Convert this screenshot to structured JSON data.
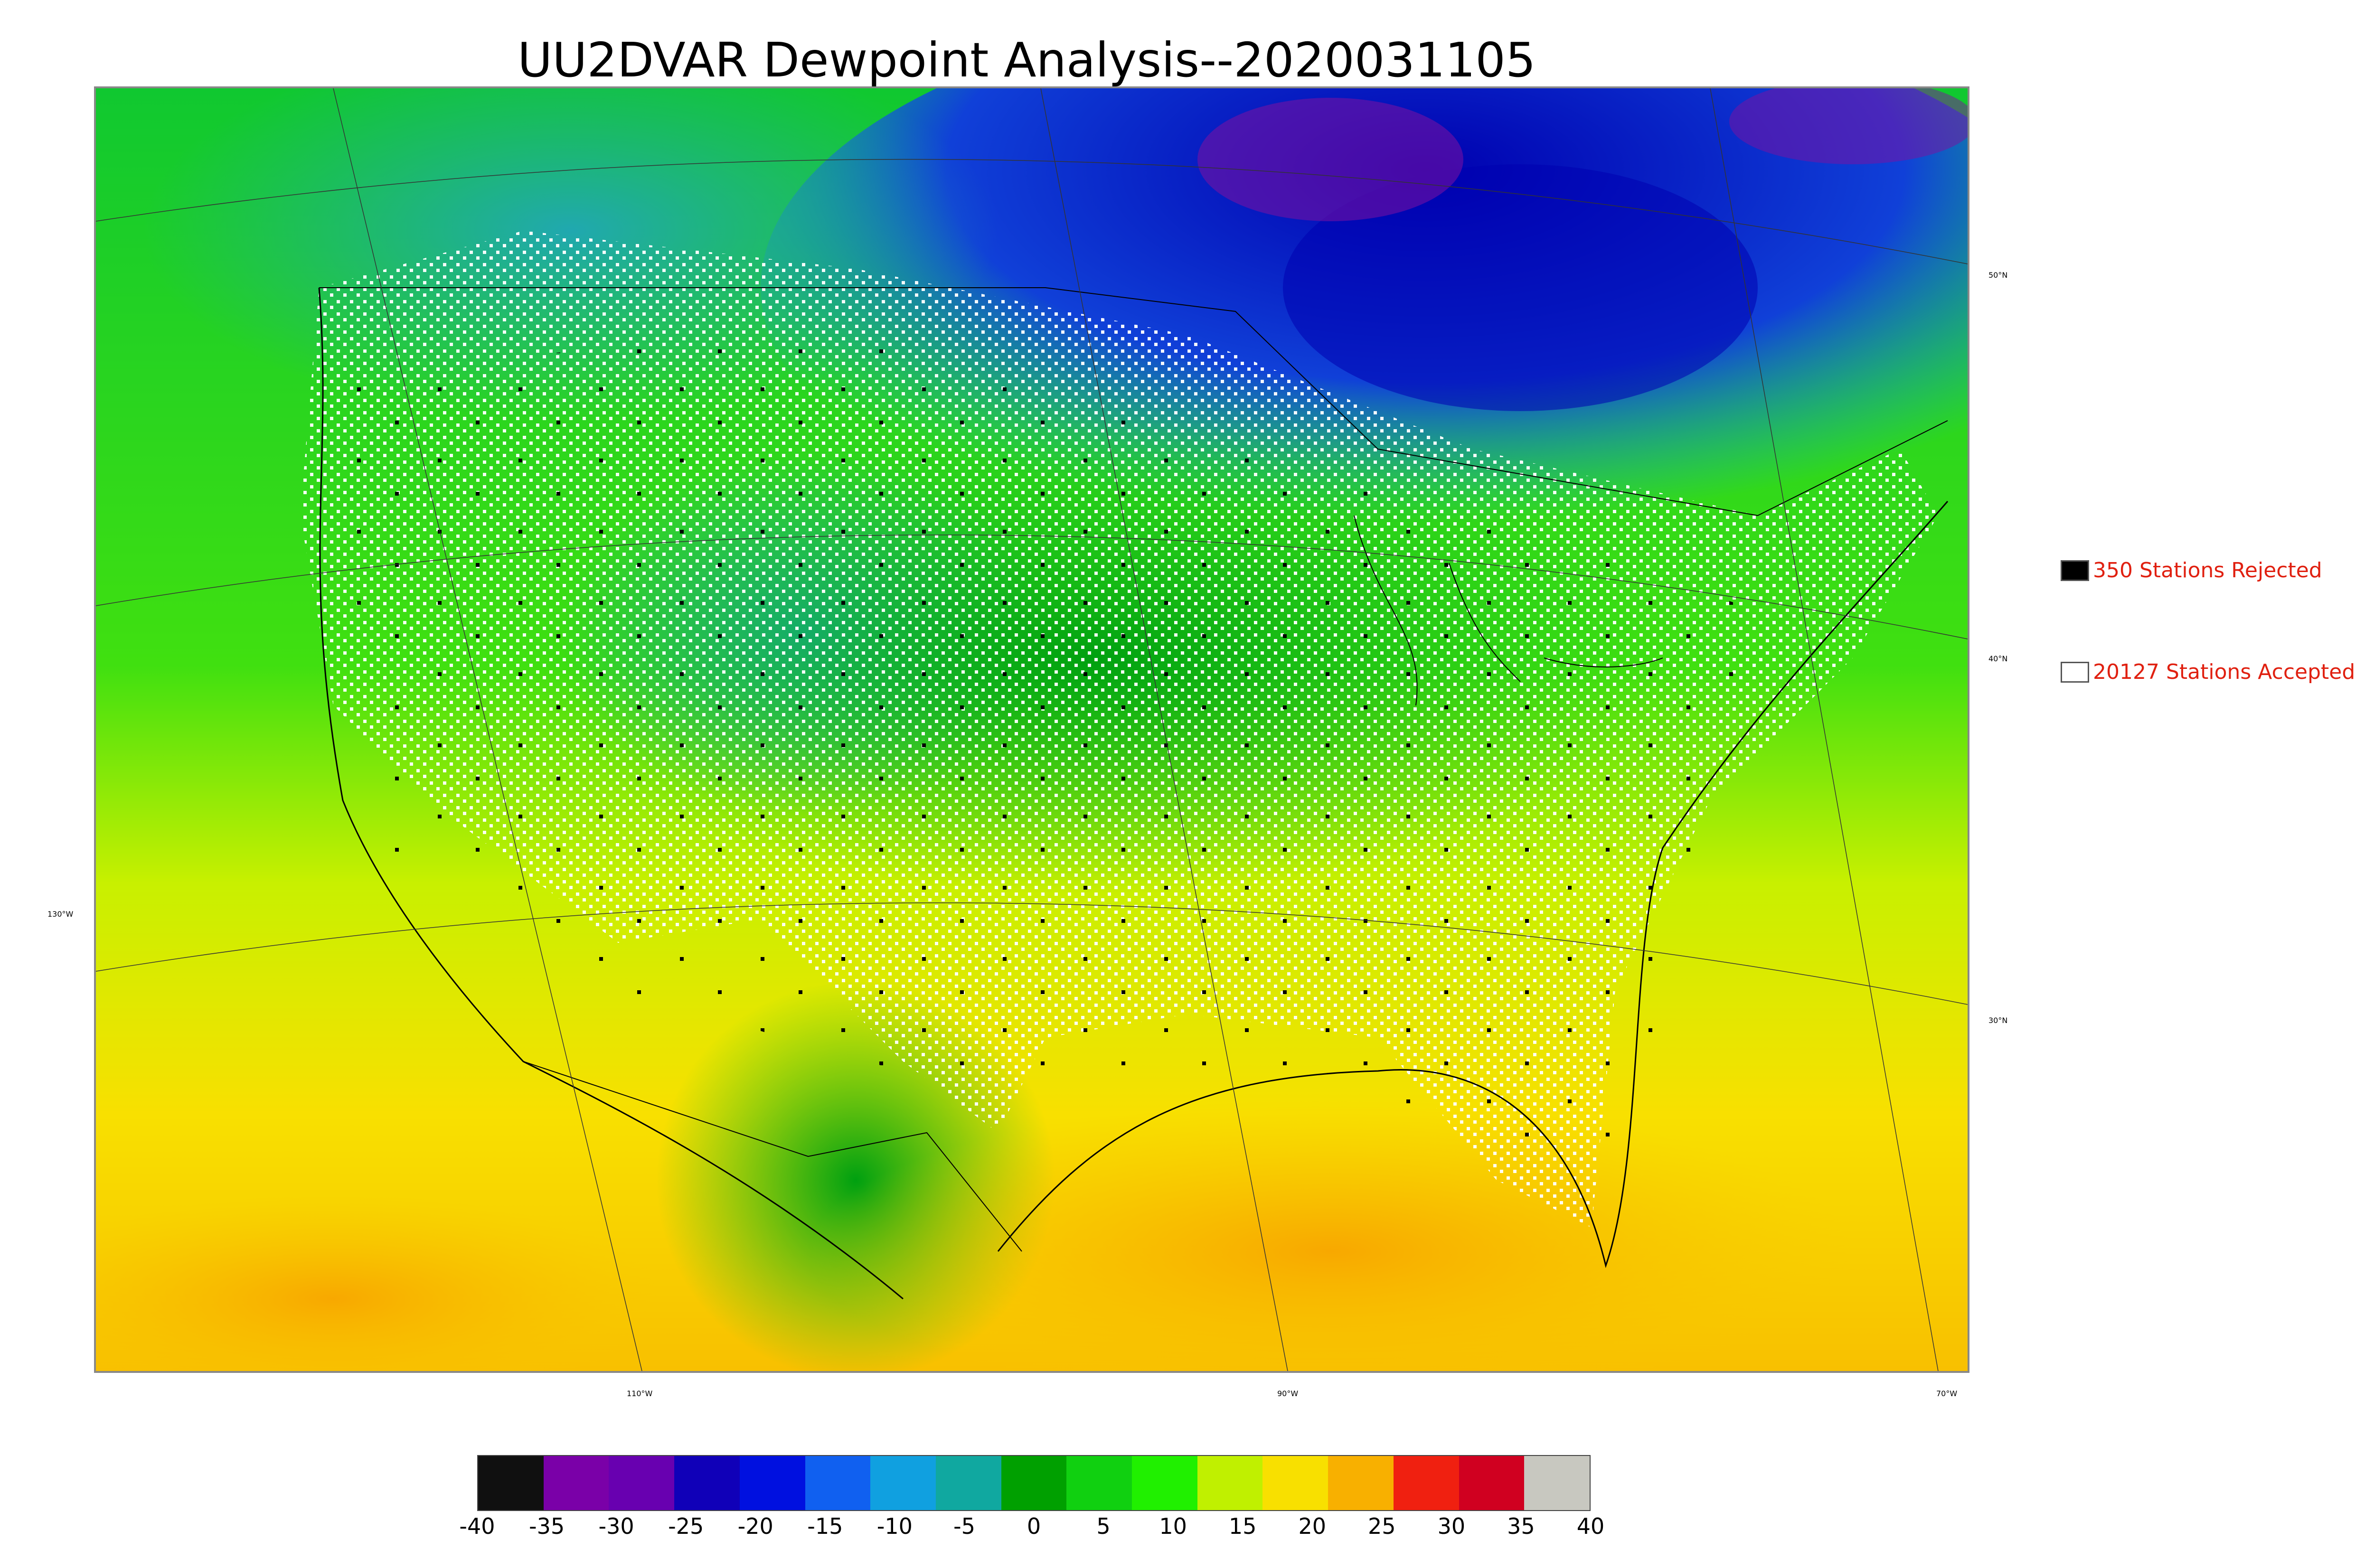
{
  "title": "UU2DVAR Dewpoint Analysis--2020031105",
  "legend": {
    "rejected_label": "350 Stations Rejected",
    "accepted_label": "20127 Stations Accepted",
    "rejected_color": "#000000",
    "accepted_color": "#ffffff",
    "text_color": "#e02010"
  },
  "map_labels": {
    "lat_50": "50°N",
    "lat_40": "40°N",
    "lat_30": "30°N",
    "lon_130": "130°W",
    "lon_110": "110°W",
    "lon_90": "90°W",
    "lon_70": "70°W"
  },
  "colorbar": {
    "ticks": [
      "-40",
      "-35",
      "-30",
      "-25",
      "-20",
      "-15",
      "-10",
      "-5",
      "0",
      "5",
      "10",
      "15",
      "20",
      "25",
      "30",
      "35",
      "40"
    ],
    "colors": [
      "#101010",
      "#7a00a8",
      "#6800b0",
      "#1000b8",
      "#0010e0",
      "#1060f0",
      "#10a0e0",
      "#10a8a0",
      "#00a000",
      "#10d010",
      "#20f000",
      "#c0f000",
      "#f8e000",
      "#f8b000",
      "#f02010",
      "#d00020",
      "#c8c8c0"
    ]
  }
}
